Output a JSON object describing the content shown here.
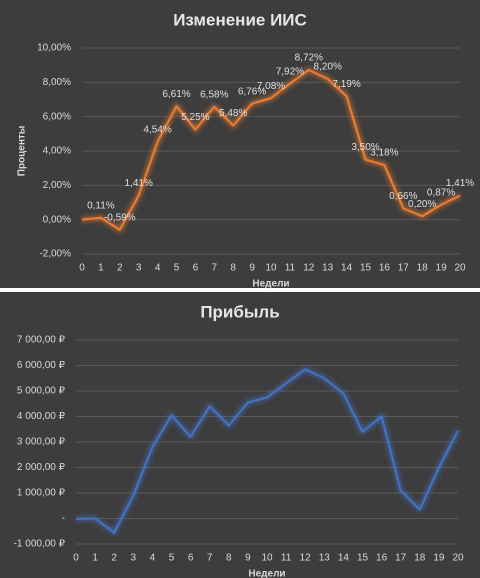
{
  "chart_data": [
    {
      "type": "line",
      "title": "Изменение ИИС",
      "x_label": "Недели",
      "y_label": "Проценты",
      "categories": [
        "0",
        "1",
        "2",
        "3",
        "4",
        "5",
        "6",
        "7",
        "8",
        "9",
        "10",
        "11",
        "12",
        "13",
        "14",
        "15",
        "16",
        "17",
        "18",
        "19",
        "20"
      ],
      "values": [
        0,
        0.11,
        -0.59,
        1.41,
        4.54,
        6.61,
        5.25,
        6.58,
        5.48,
        6.76,
        7.08,
        7.92,
        8.72,
        8.2,
        7.19,
        3.5,
        3.18,
        0.66,
        0.2,
        0.87,
        1.41
      ],
      "value_labels": [
        null,
        "0,11%",
        "-0,59%",
        "1,41%",
        "4,54%",
        "6,61%",
        "5,25%",
        "6,58%",
        "5,48%",
        "6,76%",
        "7,08%",
        "7,92%",
        "8,72%",
        "8,20%",
        "7,19%",
        "3,50%",
        "3,18%",
        "0,66%",
        "0,20%",
        "0,87%",
        "1,41%"
      ],
      "color": "#ed7d31",
      "ylim": [
        -2,
        10
      ],
      "yticks": [
        {
          "value": -2,
          "label": "-2,00%"
        },
        {
          "value": 0,
          "label": "0,00%"
        },
        {
          "value": 2,
          "label": "2,00%"
        },
        {
          "value": 4,
          "label": "4,00%"
        },
        {
          "value": 6,
          "label": "6,00%"
        },
        {
          "value": 8,
          "label": "8,00%"
        },
        {
          "value": 10,
          "label": "10,00%"
        }
      ],
      "grid": true
    },
    {
      "type": "line",
      "title": "Прибыль",
      "x_label": "Недели",
      "categories": [
        "0",
        "1",
        "2",
        "3",
        "4",
        "5",
        "6",
        "7",
        "8",
        "9",
        "10",
        "11",
        "12",
        "13",
        "14",
        "15",
        "16",
        "17",
        "18",
        "19",
        "20"
      ],
      "values": [
        -20,
        0,
        -550,
        900,
        2800,
        4050,
        3200,
        4400,
        3650,
        4550,
        4750,
        5300,
        5850,
        5500,
        4900,
        3400,
        4000,
        1100,
        350,
        2000,
        3450
      ],
      "color": "#4472c4",
      "ylim": [
        -1000,
        7000
      ],
      "yticks": [
        {
          "value": -1000,
          "label": "-1 000,00 ₽"
        },
        {
          "value": 0,
          "label": "-"
        },
        {
          "value": 1000,
          "label": "1 000,00 ₽"
        },
        {
          "value": 2000,
          "label": "2 000,00 ₽"
        },
        {
          "value": 3000,
          "label": "3 000,00 ₽"
        },
        {
          "value": 4000,
          "label": "4 000,00 ₽"
        },
        {
          "value": 5000,
          "label": "5 000,00 ₽"
        },
        {
          "value": 6000,
          "label": "6 000,00 ₽"
        },
        {
          "value": 7000,
          "label": "7 000,00 ₽"
        }
      ],
      "grid": true
    }
  ]
}
